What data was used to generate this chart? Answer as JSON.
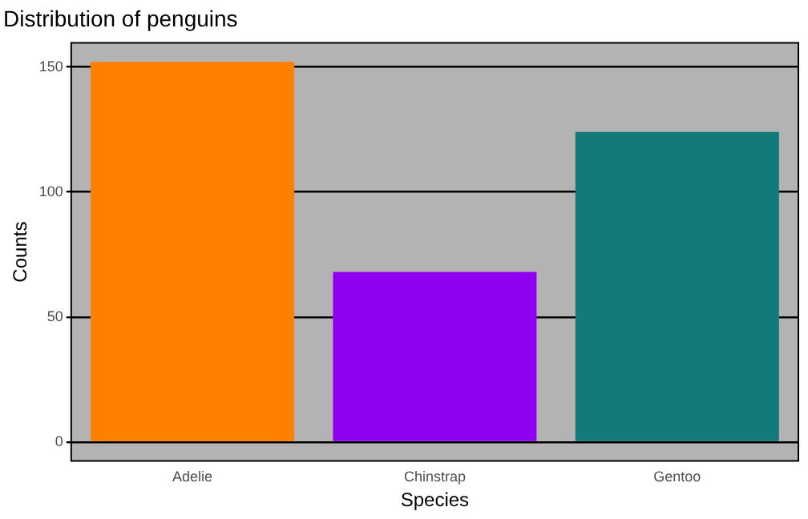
{
  "chart_data": {
    "type": "bar",
    "title": "Distribution of penguins",
    "xlabel": "Species",
    "ylabel": "Counts",
    "categories": [
      "Adelie",
      "Chinstrap",
      "Gentoo"
    ],
    "values": [
      152,
      68,
      124
    ],
    "colors": [
      "#ff7f00",
      "#8f00f0",
      "#127a78"
    ],
    "ylim": [
      -7.6,
      159.6
    ],
    "yticks": [
      0,
      50,
      100,
      150
    ],
    "grid": "y"
  }
}
